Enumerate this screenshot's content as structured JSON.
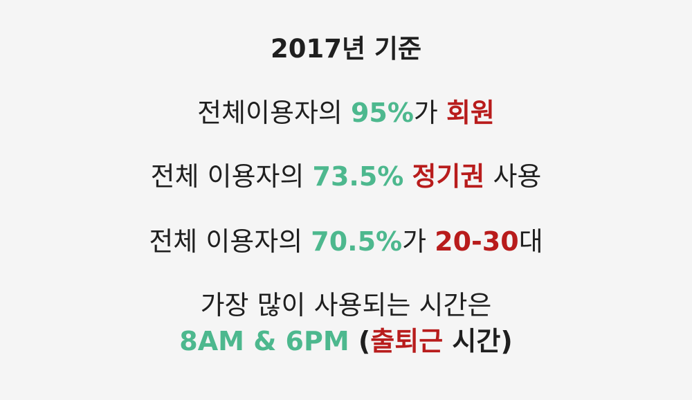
{
  "title": "2017년 기준",
  "line1": {
    "a": "전체이용자의 ",
    "b": "95%",
    "c": "가 ",
    "d": "회원"
  },
  "line2": {
    "a": "전체 이용자의 ",
    "b": "73.5%",
    "c": " ",
    "d": "정기권",
    "e": " 사용"
  },
  "line3": {
    "a": "전체 이용자의 ",
    "b": "70.5%",
    "c": "가 ",
    "d": "20-30",
    "e": "대"
  },
  "line4": "가장 많이 사용되는 시간은",
  "line5": {
    "a": "8AM & 6PM",
    "b": " (",
    "c": "출퇴근",
    "d": " 시간)"
  },
  "colors": {
    "accent_green": "#4db88e",
    "accent_red": "#b81c1c",
    "text": "#1f1f1f",
    "background": "#f5f5f5"
  }
}
